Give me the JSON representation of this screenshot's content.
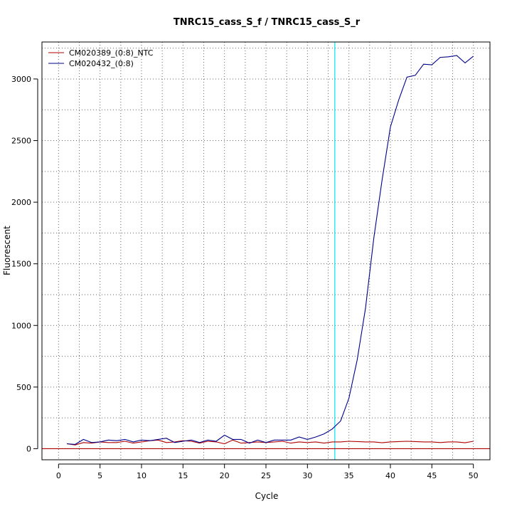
{
  "chart_data": {
    "type": "line",
    "title": "TNRC15_cass_S_f / TNRC15_cass_S_r",
    "xlabel": "Cycle",
    "ylabel": "Fluorescent",
    "xlim": [
      -2,
      52
    ],
    "ylim": [
      -90,
      3300
    ],
    "x_ticks": [
      0,
      5,
      10,
      15,
      20,
      25,
      30,
      35,
      40,
      45,
      50
    ],
    "y_ticks": [
      0,
      500,
      1000,
      1500,
      2000,
      2500,
      3000
    ],
    "x_ticks_text": [
      "0",
      "5",
      "10",
      "15",
      "20",
      "25",
      "30",
      "35",
      "40",
      "45",
      "50"
    ],
    "y_ticks_text": [
      "0",
      "500",
      "1000",
      "1500",
      "2000",
      "2500",
      "3000"
    ],
    "grid": true,
    "legend_position": "top-left",
    "threshold": {
      "y": 0,
      "color": "#b00000"
    },
    "cycle_threshold": {
      "x": 33.3,
      "color": "#00e5ee"
    },
    "x": [
      1,
      2,
      3,
      4,
      5,
      6,
      7,
      8,
      9,
      10,
      11,
      12,
      13,
      14,
      15,
      16,
      17,
      18,
      19,
      20,
      21,
      22,
      23,
      24,
      25,
      26,
      27,
      28,
      29,
      30,
      31,
      32,
      33,
      34,
      35,
      36,
      37,
      38,
      39,
      40,
      41,
      42,
      43,
      44,
      45,
      46,
      47,
      48,
      49,
      50
    ],
    "series": [
      {
        "name": "CM020389_(0:8)_NTC",
        "color": "#b00000",
        "values": [
          40,
          30,
          50,
          45,
          55,
          50,
          50,
          60,
          45,
          55,
          65,
          70,
          50,
          55,
          65,
          60,
          45,
          60,
          55,
          40,
          70,
          45,
          50,
          55,
          50,
          55,
          60,
          45,
          55,
          50,
          55,
          45,
          55,
          55,
          60,
          58,
          55,
          55,
          48,
          55,
          58,
          60,
          58,
          55,
          55,
          50,
          55,
          55,
          48,
          60
        ]
      },
      {
        "name": "CM020432_(0:8)",
        "color": "#00008b",
        "values": [
          40,
          35,
          75,
          50,
          55,
          70,
          65,
          75,
          55,
          70,
          65,
          75,
          85,
          50,
          60,
          70,
          50,
          70,
          60,
          110,
          75,
          75,
          45,
          70,
          50,
          70,
          70,
          70,
          95,
          75,
          95,
          120,
          160,
          225,
          410,
          720,
          1140,
          1710,
          2180,
          2610,
          2830,
          3015,
          3030,
          3120,
          3115,
          3175,
          3180,
          3190,
          3130,
          3185
        ]
      }
    ]
  }
}
